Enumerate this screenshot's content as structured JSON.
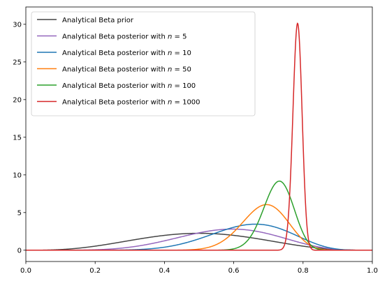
{
  "chart_data": {
    "type": "line",
    "title": "",
    "xlabel": "",
    "ylabel": "",
    "xlim": [
      0,
      1
    ],
    "ylim": [
      -1.5,
      32.3
    ],
    "x_ticks": [
      "0.0",
      "0.2",
      "0.4",
      "0.6",
      "0.8",
      "1.0"
    ],
    "y_ticks": [
      "0",
      "5",
      "10",
      "15",
      "20",
      "25",
      "30"
    ],
    "grid": false,
    "legend_position": "top-left",
    "series": [
      {
        "name_prefix": "Analytical Beta prior",
        "name_n": "",
        "color": "#444444",
        "alpha": 4.2,
        "beta": 4.2
      },
      {
        "name_prefix": "Analytical Beta posterior with",
        "name_n": "5",
        "color": "#9467bd",
        "alpha": 7.2,
        "beta": 5.2
      },
      {
        "name_prefix": "Analytical Beta posterior with",
        "name_n": "10",
        "color": "#1f77b4",
        "alpha": 11.2,
        "beta": 6.2
      },
      {
        "name_prefix": "Analytical Beta posterior with",
        "name_n": "50",
        "color": "#ff7f0e",
        "alpha": 34,
        "beta": 15.5
      },
      {
        "name_prefix": "Analytical Beta posterior with",
        "name_n": "100",
        "color": "#2ca02c",
        "alpha": 76,
        "beta": 28.5
      },
      {
        "name_prefix": "Analytical Beta posterior with",
        "name_n": "1000",
        "color": "#d62728",
        "alpha": 757,
        "beta": 209
      }
    ]
  }
}
